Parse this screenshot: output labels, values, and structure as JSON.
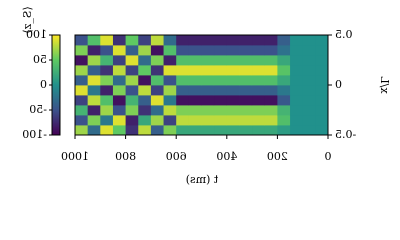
{
  "chart_data": {
    "type": "heatmap",
    "xlabel": "t (ms)",
    "ylabel": "x/L",
    "colorbar_label": "⟨S_z⟩",
    "mirrored": true,
    "colormap": "viridis",
    "t_edges": [
      0,
      50,
      100,
      150,
      200,
      250,
      300,
      350,
      400,
      450,
      500,
      550,
      600,
      650,
      700,
      750,
      800,
      850,
      900,
      950,
      1000
    ],
    "x_edges": [
      -0.5,
      -0.4,
      -0.3,
      -0.2,
      -0.1,
      0,
      0.1,
      0.2,
      0.3,
      0.4,
      0.5
    ],
    "z": [
      [
        0,
        0,
        0,
        10,
        20,
        20,
        20,
        20,
        20,
        20,
        20,
        20,
        60,
        -40,
        80,
        -70,
        50,
        90,
        -30,
        70
      ],
      [
        0,
        0,
        0,
        40,
        80,
        80,
        80,
        80,
        80,
        80,
        80,
        80,
        -60,
        70,
        20,
        -80,
        90,
        -20,
        60,
        -50
      ],
      [
        0,
        0,
        0,
        30,
        60,
        60,
        60,
        60,
        60,
        60,
        60,
        60,
        80,
        -30,
        -70,
        60,
        -50,
        70,
        -80,
        30
      ],
      [
        0,
        0,
        0,
        -45,
        -90,
        -90,
        -90,
        -90,
        -90,
        -90,
        -90,
        -90,
        -20,
        90,
        -40,
        30,
        -90,
        40,
        80,
        -60
      ],
      [
        0,
        0,
        0,
        -20,
        -40,
        -40,
        -40,
        -40,
        -40,
        -40,
        -40,
        -40,
        70,
        -60,
        80,
        -50,
        60,
        -80,
        -20,
        90
      ],
      [
        0,
        0,
        0,
        20,
        40,
        40,
        40,
        40,
        40,
        40,
        40,
        40,
        -50,
        40,
        -90,
        70,
        -30,
        60,
        90,
        -40
      ],
      [
        0,
        0,
        0,
        45,
        90,
        90,
        90,
        90,
        90,
        90,
        90,
        90,
        90,
        -70,
        50,
        -60,
        80,
        -70,
        -40,
        70
      ],
      [
        0,
        0,
        0,
        20,
        40,
        40,
        40,
        40,
        40,
        40,
        40,
        40,
        -80,
        60,
        -30,
        90,
        -60,
        30,
        70,
        -90
      ],
      [
        0,
        0,
        0,
        -25,
        -50,
        -50,
        -50,
        -50,
        -50,
        -50,
        -50,
        -50,
        40,
        -90,
        70,
        -40,
        90,
        -50,
        -80,
        60
      ],
      [
        0,
        0,
        0,
        -40,
        -80,
        -80,
        -80,
        -80,
        -80,
        -80,
        -80,
        -80,
        -30,
        80,
        -60,
        50,
        -70,
        90,
        40,
        -50
      ]
    ],
    "xlim": [
      0,
      1000
    ],
    "xticks": [
      0,
      200,
      400,
      600,
      800,
      1000
    ],
    "ylim": [
      -0.5,
      0.5
    ],
    "yticks": [
      -0.5,
      0,
      0.5
    ],
    "clim": [
      -100,
      100
    ],
    "cticks": [
      -100,
      -50,
      0,
      50,
      100
    ]
  }
}
